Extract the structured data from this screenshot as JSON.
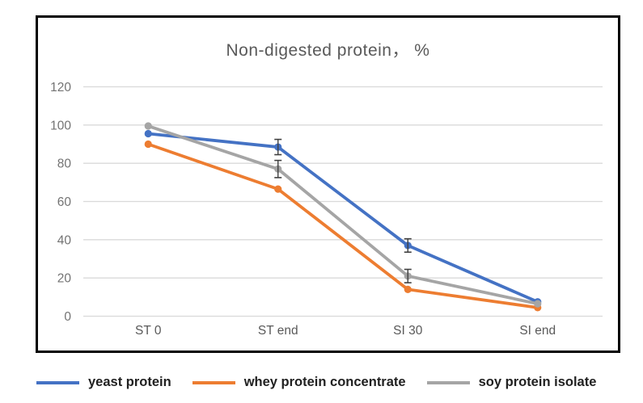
{
  "chart_data": {
    "type": "line",
    "title": "Non-digested protein， %",
    "categories": [
      "ST 0",
      "ST end",
      "SI 30",
      "SI end"
    ],
    "series": [
      {
        "name": "yeast protein",
        "color": "#4472C4",
        "values": [
          95.5,
          88.5,
          37,
          7.5
        ],
        "errors": [
          0,
          4,
          3.5,
          0
        ]
      },
      {
        "name": "whey protein concentrate",
        "color": "#ED7D31",
        "values": [
          90,
          66.5,
          14,
          4.5
        ],
        "errors": [
          0,
          0,
          0,
          0
        ]
      },
      {
        "name": "soy protein isolate",
        "color": "#A5A5A5",
        "values": [
          99.5,
          77,
          21,
          6.5
        ],
        "errors": [
          0,
          4.5,
          3.5,
          0
        ]
      }
    ],
    "ylim": [
      0,
      120
    ],
    "ytick_step": 20,
    "grid": true,
    "legend_position": "bottom",
    "colors": {
      "gridline": "#D9D9D9",
      "axis_label": "#737373",
      "category_label": "#595959",
      "title": "#595959",
      "error_bar": "#404040",
      "frame_border": "#000000"
    }
  }
}
